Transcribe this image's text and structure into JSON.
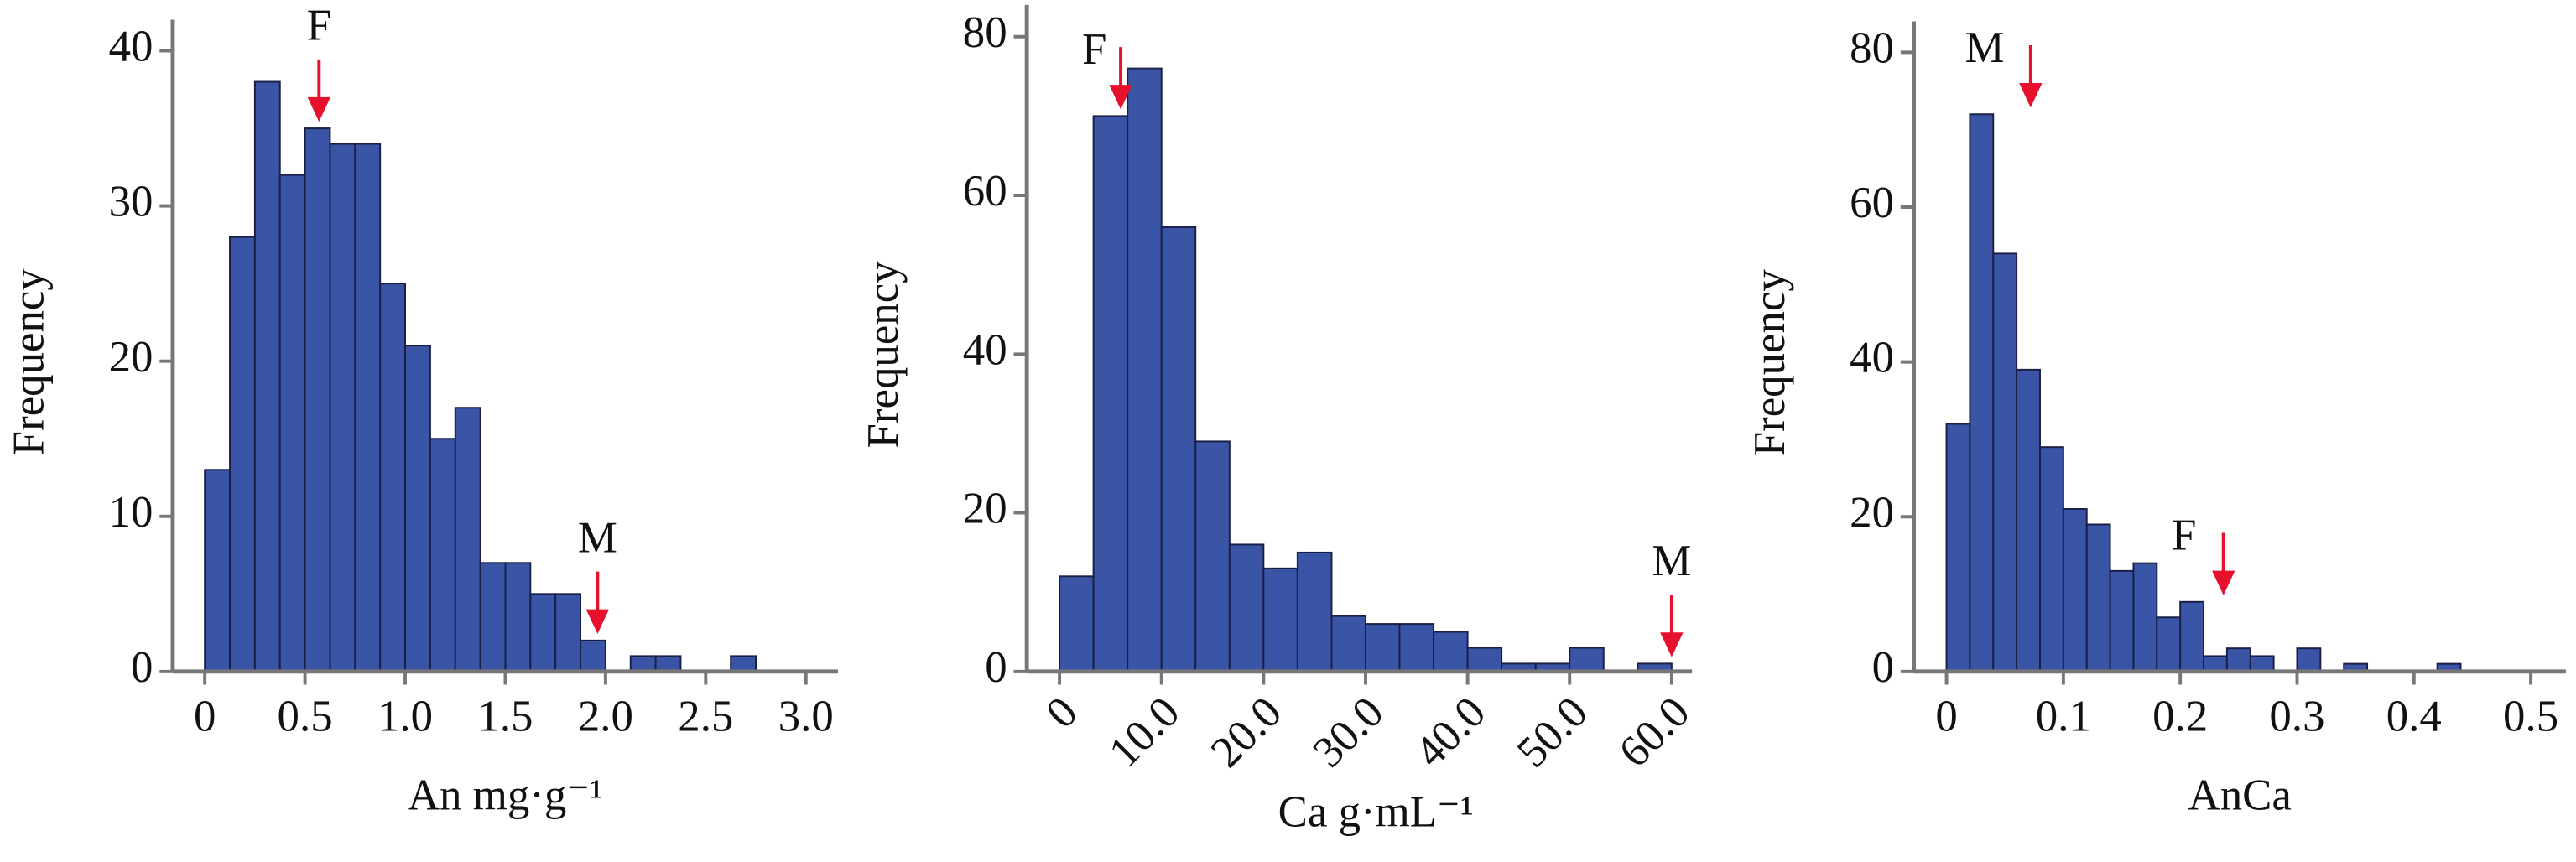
{
  "chart_data": [
    {
      "type": "histogram",
      "xlabel": "An mg·g⁻¹",
      "ylabel": "Frequency",
      "color": "#3a54a6",
      "annotation_color": "#e8112d",
      "bins": [
        0,
        0.125,
        0.25,
        0.375,
        0.5,
        0.625,
        0.75,
        0.875,
        1,
        1.125,
        1.25,
        1.375,
        1.5,
        1.625,
        1.75,
        1.875,
        2,
        2.125,
        2.25,
        2.375,
        2.5,
        2.625,
        2.75
      ],
      "values": [
        13,
        28,
        38,
        32,
        35,
        34,
        34,
        25,
        21,
        15,
        17,
        7,
        7,
        5,
        5,
        2,
        0,
        1,
        1,
        0,
        0,
        1
      ],
      "xlim": [
        -0.16,
        3.16
      ],
      "xticks": [
        0,
        0.5,
        {
          "value": 1,
          "label": "1.0"
        },
        1.5,
        {
          "value": 2,
          "label": "2.0"
        },
        2.5,
        {
          "value": 3,
          "label": "3.0"
        }
      ],
      "ylim": [
        0,
        42
      ],
      "yticks": [
        0,
        10,
        20,
        30,
        40
      ],
      "annotations": [
        {
          "text": "F",
          "x": 0.57,
          "y": 35
        },
        {
          "text": "M",
          "x": 1.96,
          "y": 2
        }
      ]
    },
    {
      "type": "histogram",
      "xlabel": "Ca g·mL⁻¹",
      "ylabel": "Frequency",
      "color": "#3a54a6",
      "annotation_color": "#e8112d",
      "bins": [
        0,
        3.33,
        6.67,
        10,
        13.33,
        16.67,
        20,
        23.33,
        26.67,
        30,
        33.33,
        36.67,
        40,
        43.33,
        46.67,
        50,
        53.33,
        56.67,
        60
      ],
      "values": [
        12,
        70,
        76,
        56,
        29,
        16,
        13,
        15,
        7,
        6,
        6,
        5,
        3,
        1,
        1,
        3,
        0,
        1
      ],
      "xlim": [
        -3.2,
        62
      ],
      "xticks": [
        0,
        {
          "value": 10,
          "label": "10.0"
        },
        {
          "value": 20,
          "label": "20.0"
        },
        {
          "value": 30,
          "label": "30.0"
        },
        {
          "value": 40,
          "label": "40.0"
        },
        {
          "value": 50,
          "label": "50.0"
        },
        {
          "value": 60,
          "label": "60.0"
        }
      ],
      "ylim": [
        0,
        84
      ],
      "yticks": [
        0,
        20,
        40,
        60,
        80
      ],
      "annotations": [
        {
          "text": "F",
          "x": 6,
          "y": 70
        },
        {
          "text": "M",
          "x": 60,
          "y": 1
        }
      ]
    },
    {
      "type": "histogram",
      "xlabel": "AnCa",
      "ylabel": "Frequency",
      "color": "#3a54a6",
      "annotation_color": "#e8112d",
      "bins": [
        0,
        0.02,
        0.04,
        0.06,
        0.08,
        0.1,
        0.12,
        0.14,
        0.16,
        0.18,
        0.2,
        0.22,
        0.24,
        0.26,
        0.28,
        0.3,
        0.32,
        0.34,
        0.36,
        0.38,
        0.4,
        0.42,
        0.44
      ],
      "values": [
        32,
        72,
        54,
        39,
        29,
        21,
        19,
        13,
        14,
        7,
        9,
        2,
        3,
        2,
        0,
        3,
        0,
        1,
        0,
        0,
        0,
        1
      ],
      "xlim": [
        -0.028,
        0.53
      ],
      "xticks": [
        0,
        0.1,
        0.2,
        0.3,
        0.4,
        0.5
      ],
      "ylim": [
        0,
        84
      ],
      "yticks": [
        0,
        20,
        40,
        60,
        80
      ],
      "annotations": [
        {
          "text": "M",
          "x": 0.072,
          "y": 72
        },
        {
          "text": "F",
          "x": 0.237,
          "y": 9
        }
      ]
    }
  ]
}
